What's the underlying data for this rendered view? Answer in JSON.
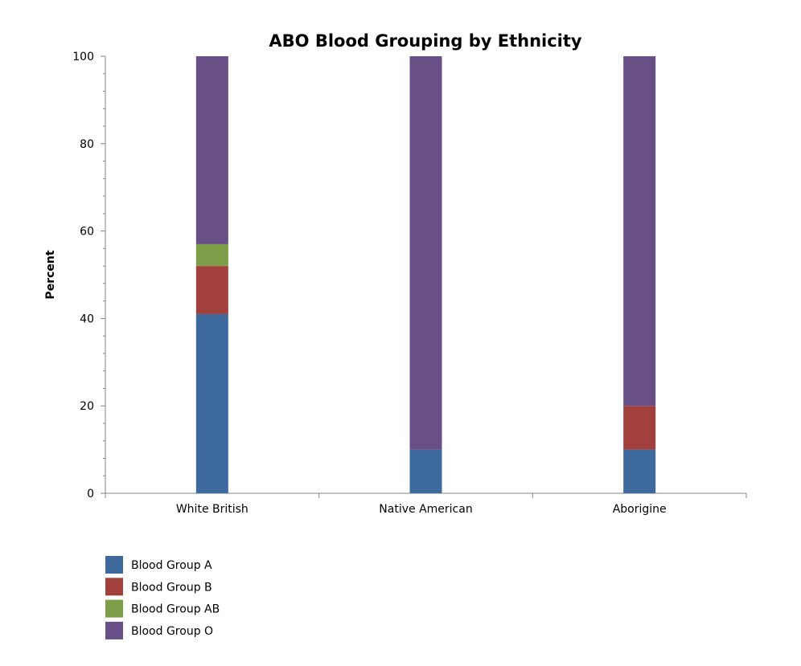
{
  "chart_data": {
    "type": "bar",
    "stacked": true,
    "title": "ABO Blood Grouping by Ethnicity",
    "xlabel": "",
    "ylabel": "Percent",
    "ylim": [
      0,
      100
    ],
    "yticks": [
      "0",
      "20",
      "40",
      "60",
      "80",
      "100"
    ],
    "grid": false,
    "legend_position": "bottom-left",
    "categories": [
      "White British",
      "Native American",
      "Aborigine"
    ],
    "series": [
      {
        "name": "Blood Group A",
        "color": "#3E6A9E",
        "values": [
          41,
          10,
          10
        ]
      },
      {
        "name": "Blood Group B",
        "color": "#A2403E",
        "values": [
          11,
          0,
          10
        ]
      },
      {
        "name": "Blood Group AB",
        "color": "#7E9D48",
        "values": [
          5,
          0,
          0
        ]
      },
      {
        "name": "Blood Group O",
        "color": "#684F86",
        "values": [
          43,
          90,
          80
        ]
      }
    ]
  }
}
